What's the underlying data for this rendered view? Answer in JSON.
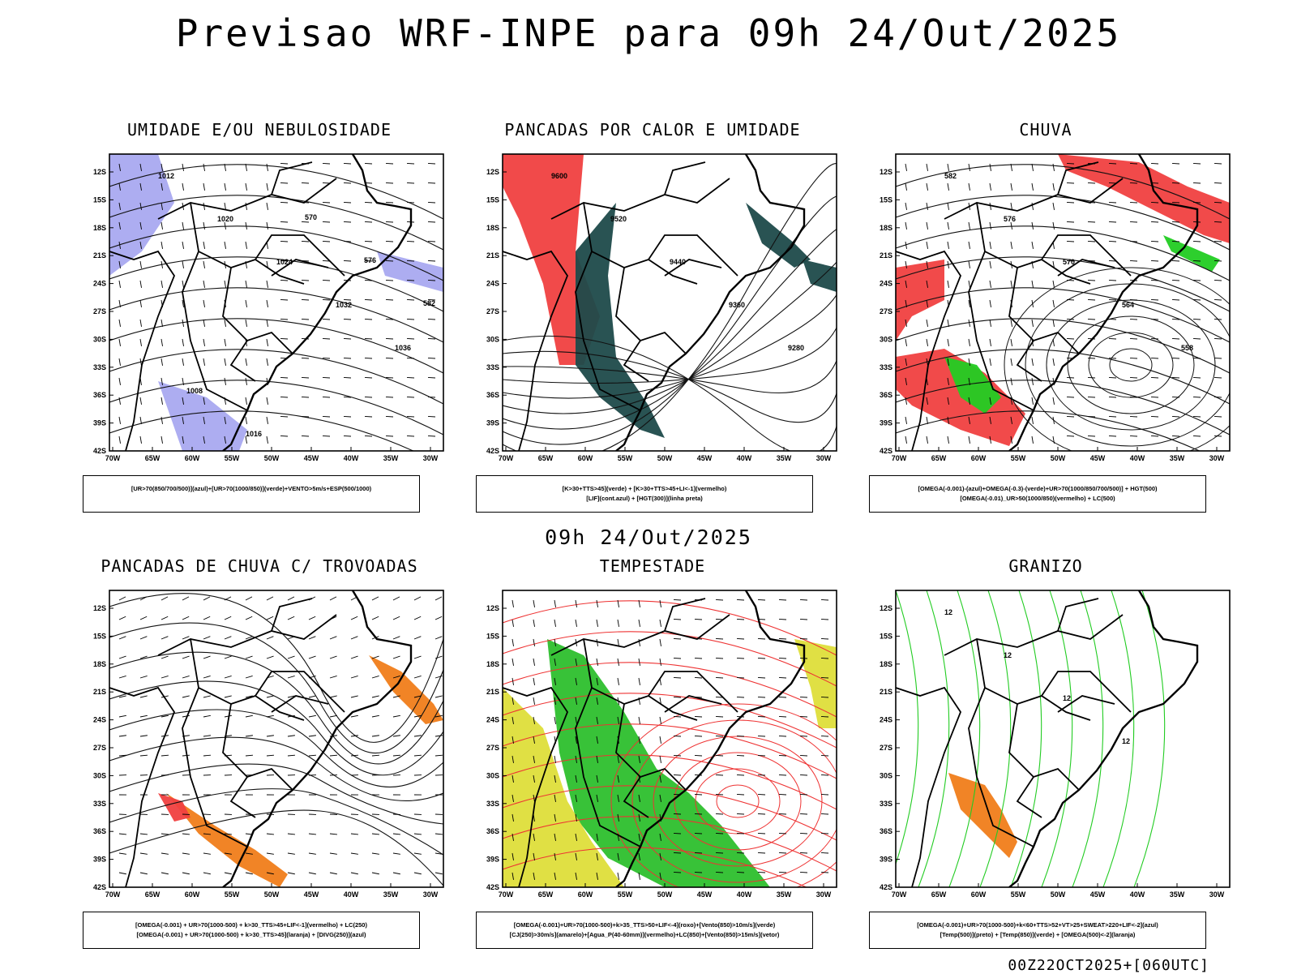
{
  "main_title": "Previsao WRF-INPE  para 09h 24/Out/2025",
  "mid_title": "09h 24/Out/2025",
  "footer": "00Z22OCT2025+[060UTC]",
  "axes": {
    "lat_labels": [
      "12S",
      "15S",
      "18S",
      "21S",
      "24S",
      "27S",
      "30S",
      "33S",
      "36S",
      "39S",
      "42S"
    ],
    "lon_labels": [
      "70W",
      "65W",
      "60W",
      "55W",
      "50W",
      "45W",
      "40W",
      "35W",
      "30W"
    ]
  },
  "panels": [
    {
      "title": "UMIDADE E/OU NEBULOSIDADE",
      "legend": [
        "[UR>70(850/700/500)](azul)+[UR>70(1000/850)](verde)+VENTO>5m/s+ESP(500/1000)"
      ],
      "labels": [
        "1012",
        "1020",
        "1024",
        "1032",
        "1036",
        "1008",
        "1016",
        "570",
        "576",
        "582"
      ]
    },
    {
      "title": "PANCADAS POR CALOR E UMIDADE",
      "legend": [
        "[K>30+TTS>45](verde)  +  [K>30+TTS>45+LI<-1](vermelho)",
        "[LIF](cont.azul)  +  [HGT(300)](linha preta)"
      ],
      "labels": [
        "9600",
        "9520",
        "9440",
        "9360",
        "9280"
      ]
    },
    {
      "title": "CHUVA",
      "legend": [
        "[OMEGA(-0.001)-(azul)+OMEGA(-0.3)-(verde)+UR>70(1000/850/700/500)]  +  HGT(500)",
        "[OMEGA(-0.01)_UR>50(1000/850)(vermelho)  +  LC(500)"
      ],
      "labels": [
        "582",
        "576",
        "570",
        "564",
        "558"
      ]
    },
    {
      "title": "PANCADAS DE CHUVA C/ TROVOADAS",
      "legend": [
        "[OMEGA(-0.001)  +  UR>70(1000-500)  +  k>30_TTS>45+LIF<-1](vermelho)  +  LC(250)",
        "[OMEGA(-0.001)  +  UR>70(1000-500)  +  k>30_TTS>45](laranja)  +  [DIVG(250)](azul)"
      ],
      "labels": []
    },
    {
      "title": "TEMPESTADE",
      "legend": [
        "[OMEGA(-0.001)+UR>70(1000-500)+k>35_TTS>50+LIF<-4](roxo)+[Vento(850)>10m/s](verde)",
        "[CJ(250)>30m/s](amarelo)+[Agua_P(40-60mm)](vermelho)+LC(850)+[Vento(850)>15m/s](vetor)"
      ],
      "labels": []
    },
    {
      "title": "GRANIZO",
      "legend": [
        "[OMEGA(-0.001)+UR>70(1000-500)+k<60+TTS>52+VT>25+SWEAT>220+LIF<-2](azul)",
        "[Temp(500)](preto)  +  [Temp(850)](verde)  +  [OMEGA(500)<-2](laranja)"
      ],
      "labels": [
        "12",
        "12",
        "12",
        "12"
      ]
    }
  ]
}
